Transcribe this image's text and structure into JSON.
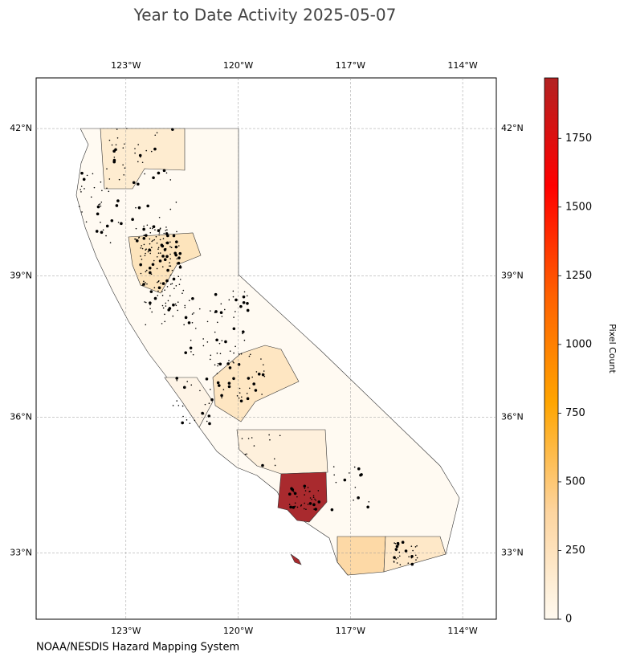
{
  "chart_data": {
    "type": "map",
    "title": "Year to Date Activity 2025-05-07",
    "source": "NOAA/NESDIS Hazard Mapping System",
    "projection": "mercator",
    "xlim": [
      -125.4,
      -113.1
    ],
    "ylim": [
      31.5,
      43.0
    ],
    "xticks": [
      {
        "value": -123,
        "label": "123°W"
      },
      {
        "value": -120,
        "label": "120°W"
      },
      {
        "value": -117,
        "label": "117°W"
      },
      {
        "value": -114,
        "label": "114°W"
      }
    ],
    "yticks": [
      {
        "value": 33,
        "label": "33°N"
      },
      {
        "value": 36,
        "label": "36°N"
      },
      {
        "value": 39,
        "label": "39°N"
      },
      {
        "value": 42,
        "label": "42°N"
      }
    ],
    "grid": true,
    "colorbar": {
      "label": "Pixel Count",
      "clim": [
        0,
        1970
      ],
      "ticks": [
        0,
        250,
        500,
        750,
        1000,
        1250,
        1500,
        1750
      ],
      "colors": [
        "#fffaf0",
        "#fdd49e",
        "#ffa500",
        "#ff6000",
        "#ff0000",
        "#b22222"
      ]
    }
  }
}
